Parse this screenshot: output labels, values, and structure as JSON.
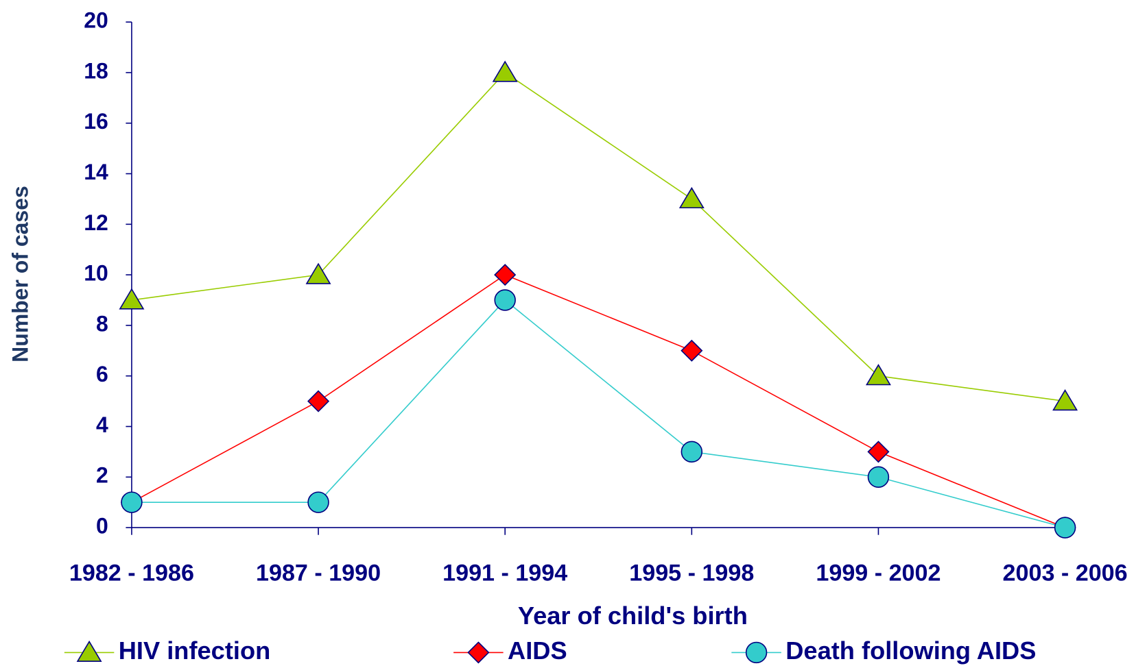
{
  "chart_data": {
    "type": "line",
    "x_label": "Year of child's birth",
    "y_label": "Number of cases",
    "categories": [
      "1982 - 1986",
      "1987 - 1990",
      "1991 - 1994",
      "1995 - 1998",
      "1999 - 2002",
      "2003 - 2006"
    ],
    "series": [
      {
        "name": "HIV infection",
        "color": "#99cc00",
        "marker": "triangle",
        "values": [
          9,
          10,
          18,
          13,
          6,
          5
        ]
      },
      {
        "name": "AIDS",
        "color": "#ff0000",
        "marker": "diamond",
        "values": [
          1,
          5,
          10,
          7,
          3,
          0
        ]
      },
      {
        "name": "Death following AIDS",
        "color": "#33cccc",
        "marker": "circle",
        "values": [
          1,
          1,
          9,
          3,
          2,
          0
        ]
      }
    ],
    "ylim": [
      0,
      20
    ],
    "yticks": [
      0,
      2,
      4,
      6,
      8,
      10,
      12,
      14,
      16,
      18,
      20
    ],
    "legend": "bottom"
  }
}
